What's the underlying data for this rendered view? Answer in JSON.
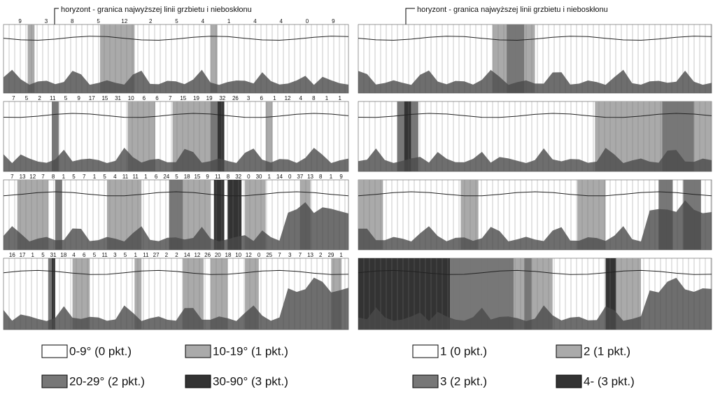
{
  "left_panel": {
    "annotation": "horyzont - granica najwyższej linii grzbietu i nieboskłonu",
    "strips": [
      {
        "labels": [
          "9",
          "3",
          "8",
          "5",
          "12",
          "2",
          "5",
          "4",
          "1",
          "4",
          "4",
          "0",
          "9"
        ]
      },
      {
        "labels": [
          "7",
          "5",
          "2",
          "11",
          "5",
          "9",
          "17",
          "15",
          "31",
          "10",
          "6",
          "6",
          "7",
          "15",
          "19",
          "19",
          "32",
          "26",
          "3",
          "6",
          "1",
          "12",
          "4",
          "8",
          "1",
          "1"
        ]
      },
      {
        "labels": [
          "7",
          "13",
          "12",
          "7",
          "8",
          "1",
          "5",
          "7",
          "1",
          "5",
          "4",
          "11",
          "11",
          "1",
          "6",
          "24",
          "5",
          "18",
          "15",
          "9",
          "11",
          "8",
          "32",
          "0",
          "30",
          "1",
          "14",
          "0",
          "37",
          "13",
          "8",
          "1",
          "9"
        ]
      },
      {
        "labels": [
          "16",
          "17",
          "1",
          "5",
          "31",
          "18",
          "4",
          "6",
          "5",
          "11",
          "3",
          "5",
          "1",
          "11",
          "27",
          "2",
          "2",
          "14",
          "12",
          "26",
          "20",
          "18",
          "10",
          "12",
          "0",
          "25",
          "7",
          "3",
          "7",
          "13",
          "2",
          "29",
          "1"
        ]
      }
    ],
    "legend": [
      {
        "label": "0-9° (0 pkt.)"
      },
      {
        "label": "10-19° (1 pkt.)"
      },
      {
        "label": "20-29° (2 pkt.)"
      },
      {
        "label": "30-90° (3 pkt.)"
      }
    ]
  },
  "right_panel": {
    "annotation": "horyzont - granica najwyższej linii grzbietu i nieboskłonu",
    "legend": [
      {
        "label": "1 (0 pkt.)"
      },
      {
        "label": "2 (1 pkt.)"
      },
      {
        "label": "3 (2 pkt.)"
      },
      {
        "label": "4- (3 pkt.)"
      }
    ]
  }
}
